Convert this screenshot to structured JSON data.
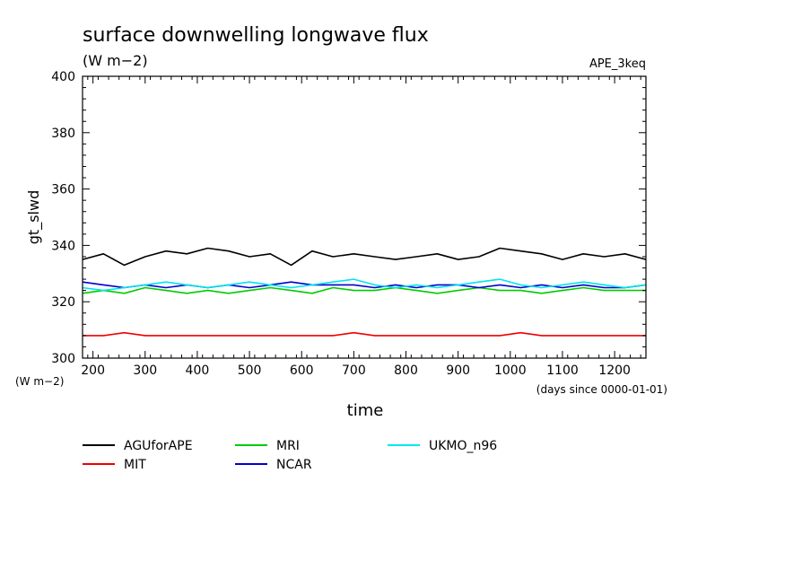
{
  "chart_data": {
    "type": "line",
    "title": "surface downwelling longwave flux",
    "units": "(W m−2)",
    "experiment": "APE_3keq",
    "xlabel": "time",
    "xunits": "(days since 0000-01-01)",
    "ylabel": "gt_slwd",
    "yunits": "(W m−2)",
    "xlim": [
      180,
      1260
    ],
    "ylim": [
      300,
      400
    ],
    "xticks": [
      200,
      300,
      400,
      500,
      600,
      700,
      800,
      900,
      1000,
      1100,
      1200
    ],
    "yticks": [
      300,
      320,
      340,
      360,
      380,
      400
    ],
    "legend_position": "bottom",
    "series": [
      {
        "name": "AGUforAPE",
        "color": "#000000",
        "x": [
          180,
          220,
          260,
          300,
          340,
          380,
          420,
          460,
          500,
          540,
          580,
          620,
          660,
          700,
          740,
          780,
          820,
          860,
          900,
          940,
          980,
          1020,
          1060,
          1100,
          1140,
          1180,
          1220,
          1260
        ],
        "values": [
          335,
          337,
          333,
          336,
          338,
          337,
          339,
          338,
          336,
          337,
          333,
          338,
          336,
          337,
          336,
          335,
          336,
          337,
          335,
          336,
          339,
          338,
          337,
          335,
          337,
          336,
          337,
          335
        ]
      },
      {
        "name": "MRI",
        "color": "#00cc00",
        "x": [
          180,
          220,
          260,
          300,
          340,
          380,
          420,
          460,
          500,
          540,
          580,
          620,
          660,
          700,
          740,
          780,
          820,
          860,
          900,
          940,
          980,
          1020,
          1060,
          1100,
          1140,
          1180,
          1220,
          1260
        ],
        "values": [
          323,
          324,
          323,
          325,
          324,
          323,
          324,
          323,
          324,
          325,
          324,
          323,
          325,
          324,
          324,
          325,
          324,
          323,
          324,
          325,
          324,
          324,
          323,
          324,
          325,
          324,
          324,
          324
        ]
      },
      {
        "name": "NCAR",
        "color": "#0000cc",
        "x": [
          180,
          220,
          260,
          300,
          340,
          380,
          420,
          460,
          500,
          540,
          580,
          620,
          660,
          700,
          740,
          780,
          820,
          860,
          900,
          940,
          980,
          1020,
          1060,
          1100,
          1140,
          1180,
          1220,
          1260
        ],
        "values": [
          327,
          326,
          325,
          326,
          325,
          326,
          325,
          326,
          325,
          326,
          327,
          326,
          326,
          326,
          325,
          326,
          325,
          326,
          326,
          325,
          326,
          325,
          326,
          325,
          326,
          325,
          325,
          326
        ]
      },
      {
        "name": "UKMO_n96",
        "color": "#00e5ee",
        "x": [
          180,
          220,
          260,
          300,
          340,
          380,
          420,
          460,
          500,
          540,
          580,
          620,
          660,
          700,
          740,
          780,
          820,
          860,
          900,
          940,
          980,
          1020,
          1060,
          1100,
          1140,
          1180,
          1220,
          1260
        ],
        "values": [
          325,
          324,
          325,
          326,
          327,
          326,
          325,
          326,
          327,
          326,
          325,
          326,
          327,
          328,
          326,
          325,
          326,
          325,
          326,
          327,
          328,
          326,
          325,
          326,
          327,
          326,
          325,
          326
        ]
      },
      {
        "name": "MIT",
        "color": "#ee0000",
        "x": [
          180,
          220,
          260,
          300,
          340,
          380,
          420,
          460,
          500,
          540,
          580,
          620,
          660,
          700,
          740,
          780,
          820,
          860,
          900,
          940,
          980,
          1020,
          1060,
          1100,
          1140,
          1180,
          1220,
          1260
        ],
        "values": [
          308,
          308,
          309,
          308,
          308,
          308,
          308,
          308,
          308,
          308,
          308,
          308,
          308,
          309,
          308,
          308,
          308,
          308,
          308,
          308,
          308,
          309,
          308,
          308,
          308,
          308,
          308,
          308
        ]
      }
    ]
  }
}
